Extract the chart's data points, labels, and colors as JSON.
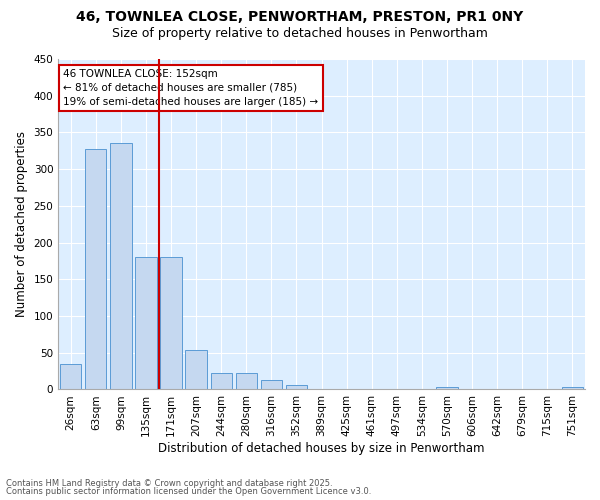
{
  "title1": "46, TOWNLEA CLOSE, PENWORTHAM, PRESTON, PR1 0NY",
  "title2": "Size of property relative to detached houses in Penwortham",
  "xlabel": "Distribution of detached houses by size in Penwortham",
  "ylabel": "Number of detached properties",
  "categories": [
    "26sqm",
    "63sqm",
    "99sqm",
    "135sqm",
    "171sqm",
    "207sqm",
    "244sqm",
    "280sqm",
    "316sqm",
    "352sqm",
    "389sqm",
    "425sqm",
    "461sqm",
    "497sqm",
    "534sqm",
    "570sqm",
    "606sqm",
    "642sqm",
    "679sqm",
    "715sqm",
    "751sqm"
  ],
  "values": [
    35,
    328,
    336,
    180,
    180,
    54,
    23,
    23,
    13,
    6,
    1,
    0,
    0,
    0,
    0,
    3,
    0,
    0,
    0,
    0,
    3
  ],
  "bar_color": "#c5d8f0",
  "bar_edge_color": "#5b9bd5",
  "ref_line_color": "#cc0000",
  "annotation_line1": "46 TOWNLEA CLOSE: 152sqm",
  "annotation_line2": "← 81% of detached houses are smaller (785)",
  "annotation_line3": "19% of semi-detached houses are larger (185) →",
  "annotation_box_color": "#ffffff",
  "annotation_box_edge": "#cc0000",
  "ylim": [
    0,
    450
  ],
  "yticks": [
    0,
    50,
    100,
    150,
    200,
    250,
    300,
    350,
    400,
    450
  ],
  "footer1": "Contains HM Land Registry data © Crown copyright and database right 2025.",
  "footer2": "Contains public sector information licensed under the Open Government Licence v3.0.",
  "plot_bg_color": "#ddeeff",
  "fig_bg_color": "#ffffff",
  "grid_color": "#ffffff",
  "title_fontsize": 10,
  "subtitle_fontsize": 9,
  "tick_fontsize": 7.5,
  "label_fontsize": 8.5,
  "footer_fontsize": 6,
  "annotation_fontsize": 7.5
}
